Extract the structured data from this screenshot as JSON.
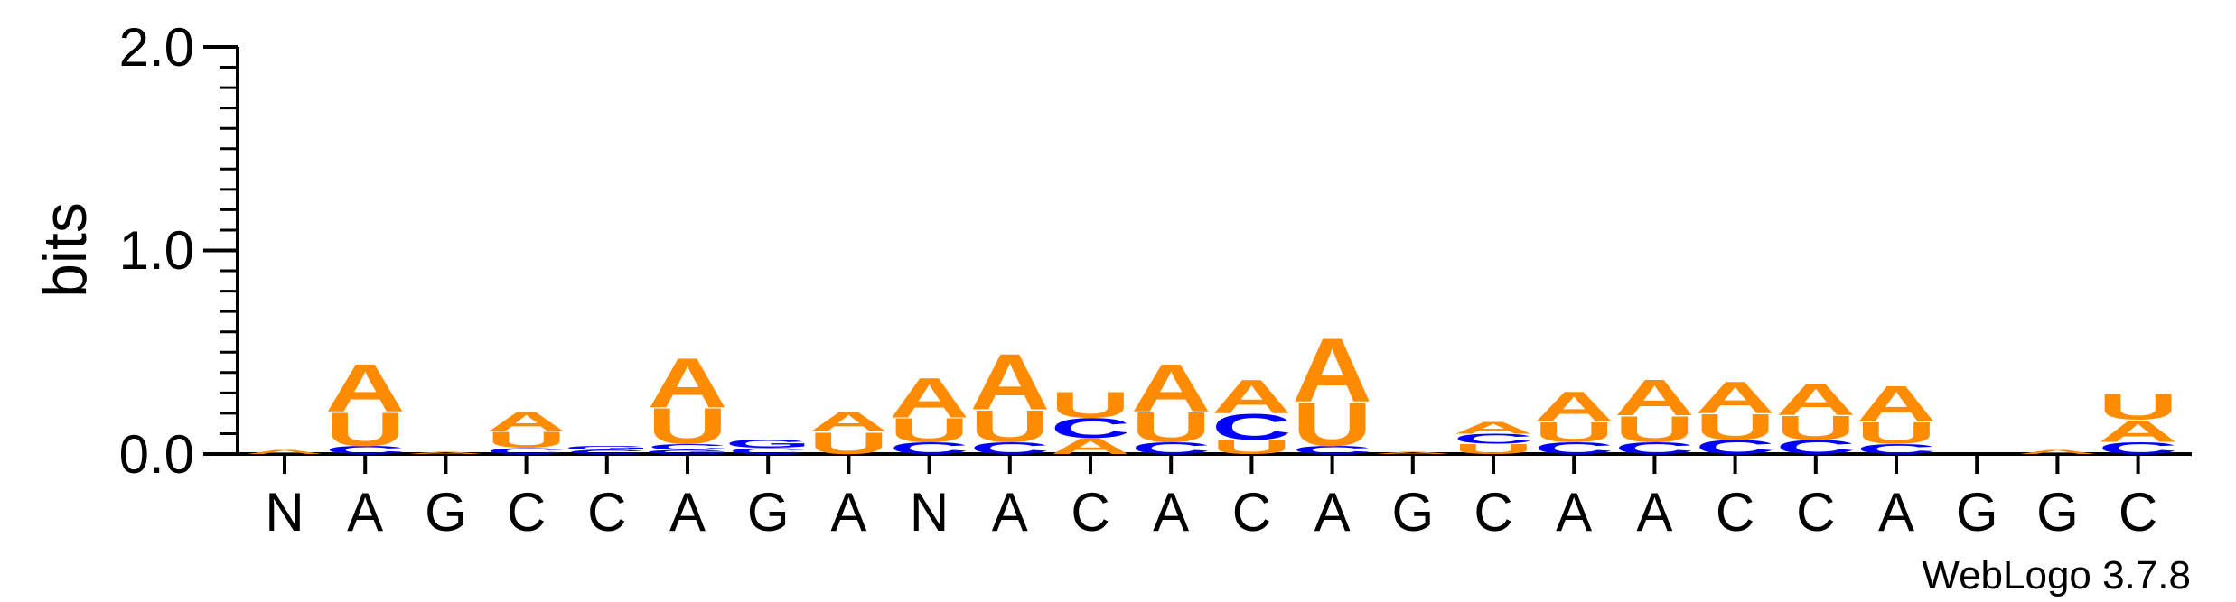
{
  "chart_data": {
    "type": "sequence-logo",
    "ylabel": "bits",
    "ylim": [
      0,
      2.0
    ],
    "yticks": [
      "0.0",
      "1.0",
      "2.0"
    ],
    "x_labels": [
      "N",
      "A",
      "G",
      "C",
      "C",
      "A",
      "G",
      "A",
      "N",
      "A",
      "C",
      "A",
      "C",
      "A",
      "G",
      "C",
      "A",
      "A",
      "C",
      "C",
      "A",
      "G",
      "G",
      "C"
    ],
    "colors": {
      "A": "#ff8c00",
      "U": "#ff8c00",
      "C": "#0000ff",
      "G": "#0000ff"
    },
    "stacks": [
      [
        [
          "A",
          0.02
        ]
      ],
      [
        [
          "C",
          0.04
        ],
        [
          "U",
          0.17
        ],
        [
          "A",
          0.24
        ]
      ],
      [
        [
          "A",
          0.01
        ]
      ],
      [
        [
          "C",
          0.03
        ],
        [
          "U",
          0.08
        ],
        [
          "A",
          0.1
        ]
      ],
      [
        [
          "C",
          0.02
        ],
        [
          "G",
          0.02
        ]
      ],
      [
        [
          "G",
          0.02
        ],
        [
          "C",
          0.03
        ],
        [
          "U",
          0.18
        ],
        [
          "A",
          0.25
        ]
      ],
      [
        [
          "C",
          0.03
        ],
        [
          "G",
          0.04
        ]
      ],
      [
        [
          "U",
          0.11
        ],
        [
          "A",
          0.1
        ]
      ],
      [
        [
          "C",
          0.06
        ],
        [
          "U",
          0.12
        ],
        [
          "A",
          0.2
        ]
      ],
      [
        [
          "C",
          0.06
        ],
        [
          "U",
          0.16
        ],
        [
          "A",
          0.28
        ]
      ],
      [
        [
          "A",
          0.08
        ],
        [
          "C",
          0.1
        ],
        [
          "U",
          0.13
        ]
      ],
      [
        [
          "C",
          0.06
        ],
        [
          "U",
          0.15
        ],
        [
          "A",
          0.24
        ]
      ],
      [
        [
          "U",
          0.07
        ],
        [
          "C",
          0.13
        ],
        [
          "A",
          0.17
        ]
      ],
      [
        [
          "C",
          0.04
        ],
        [
          "U",
          0.22
        ],
        [
          "A",
          0.32
        ]
      ],
      [
        [
          "A",
          0.01
        ]
      ],
      [
        [
          "U",
          0.05
        ],
        [
          "C",
          0.05
        ],
        [
          "A",
          0.06
        ]
      ],
      [
        [
          "C",
          0.06
        ],
        [
          "U",
          0.1
        ],
        [
          "A",
          0.15
        ]
      ],
      [
        [
          "C",
          0.06
        ],
        [
          "U",
          0.13
        ],
        [
          "A",
          0.18
        ]
      ],
      [
        [
          "C",
          0.07
        ],
        [
          "U",
          0.13
        ],
        [
          "A",
          0.16
        ]
      ],
      [
        [
          "C",
          0.07
        ],
        [
          "U",
          0.12
        ],
        [
          "A",
          0.16
        ]
      ],
      [
        [
          "C",
          0.05
        ],
        [
          "U",
          0.11
        ],
        [
          "A",
          0.18
        ]
      ],
      [],
      [
        [
          "A",
          0.02
        ]
      ],
      [
        [
          "C",
          0.06
        ],
        [
          "A",
          0.11
        ],
        [
          "U",
          0.13
        ]
      ]
    ]
  },
  "credit": "WebLogo 3.7.8"
}
